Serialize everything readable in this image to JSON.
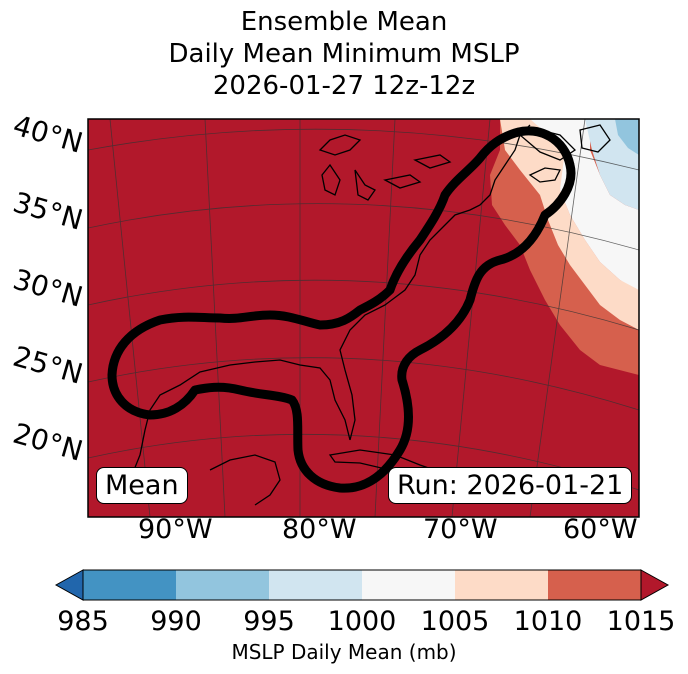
{
  "title": {
    "line1": "Ensemble Mean",
    "line2": "Daily Mean Minimum MSLP",
    "line3": "2026-01-27 12z-12z"
  },
  "map": {
    "lat_labels": [
      "40°N",
      "35°N",
      "30°N",
      "25°N",
      "20°N"
    ],
    "lon_labels": [
      "90°W",
      "80°W",
      "70°W",
      "60°W"
    ],
    "mean_box": "Mean",
    "run_box": "Run: 2026-01-21"
  },
  "colorbar": {
    "ticks": [
      "985",
      "990",
      "995",
      "1000",
      "1005",
      "1010",
      "1015"
    ],
    "label": "MSLP Daily Mean (mb)",
    "colors": [
      "#2166ac",
      "#4393c3",
      "#92c5de",
      "#d1e5f0",
      "#f7f7f7",
      "#fddbc7",
      "#d6604d",
      "#b2182b"
    ]
  }
}
